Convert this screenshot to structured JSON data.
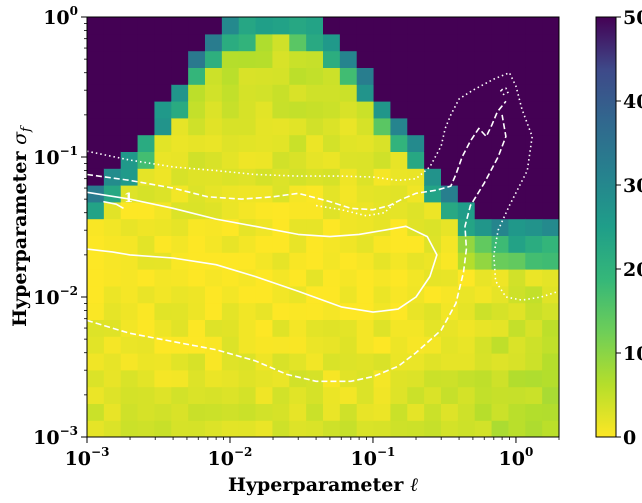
{
  "chart_data": {
    "type": "heatmap",
    "title": "",
    "xlabel": "Hyperparameter",
    "xlabel_symbol": "ℓ",
    "ylabel": "Hyperparameter",
    "ylabel_symbol": "σ",
    "ylabel_subscript": "f",
    "x_scale": "log",
    "y_scale": "log",
    "xlim": [
      0.001,
      2.0
    ],
    "ylim": [
      0.001,
      1.0
    ],
    "colorbar_range": [
      0,
      50
    ],
    "colormap": "viridis_r",
    "grid": false,
    "x_ticks": [
      {
        "value": 0.001,
        "base": "10",
        "exp": "−3"
      },
      {
        "value": 0.01,
        "base": "10",
        "exp": "−2"
      },
      {
        "value": 0.1,
        "base": "10",
        "exp": "−1"
      },
      {
        "value": 1,
        "base": "10",
        "exp": "0"
      }
    ],
    "y_ticks": [
      {
        "value": 0.001,
        "base": "10",
        "exp": "−3"
      },
      {
        "value": 0.01,
        "base": "10",
        "exp": "−2"
      },
      {
        "value": 0.1,
        "base": "10",
        "exp": "−1"
      },
      {
        "value": 1,
        "base": "10",
        "exp": "0"
      }
    ],
    "colorbar_ticks": [
      "0",
      "10",
      "20",
      "30",
      "40",
      "50"
    ],
    "contour_label": "1",
    "contours": [
      {
        "style": "solid",
        "points": [
          [
            0.001,
            0.022
          ],
          [
            0.0015,
            0.021
          ],
          [
            0.002,
            0.02
          ],
          [
            0.004,
            0.019
          ],
          [
            0.008,
            0.017
          ],
          [
            0.015,
            0.014
          ],
          [
            0.03,
            0.011
          ],
          [
            0.06,
            0.0085
          ],
          [
            0.1,
            0.0078
          ],
          [
            0.15,
            0.0082
          ],
          [
            0.2,
            0.01
          ],
          [
            0.25,
            0.014
          ],
          [
            0.28,
            0.02
          ],
          [
            0.24,
            0.027
          ],
          [
            0.17,
            0.032
          ],
          [
            0.12,
            0.03
          ],
          [
            0.08,
            0.028
          ],
          [
            0.05,
            0.027
          ],
          [
            0.03,
            0.028
          ],
          [
            0.015,
            0.032
          ],
          [
            0.008,
            0.036
          ],
          [
            0.004,
            0.043
          ],
          [
            0.002,
            0.05
          ],
          [
            0.001,
            0.056
          ]
        ]
      },
      {
        "style": "solid",
        "points": [
          [
            0.0013,
            0.048
          ],
          [
            0.0016,
            0.046
          ],
          [
            0.0018,
            0.043
          ]
        ]
      },
      {
        "style": "dashed",
        "points": [
          [
            0.001,
            0.0068
          ],
          [
            0.0015,
            0.006
          ],
          [
            0.002,
            0.0055
          ],
          [
            0.004,
            0.0048
          ],
          [
            0.008,
            0.0042
          ],
          [
            0.015,
            0.0035
          ],
          [
            0.025,
            0.0028
          ],
          [
            0.04,
            0.0025
          ],
          [
            0.07,
            0.0025
          ],
          [
            0.1,
            0.0027
          ],
          [
            0.15,
            0.0032
          ],
          [
            0.2,
            0.004
          ],
          [
            0.3,
            0.0058
          ],
          [
            0.38,
            0.009
          ],
          [
            0.43,
            0.015
          ],
          [
            0.45,
            0.022
          ],
          [
            0.44,
            0.032
          ],
          [
            0.48,
            0.045
          ],
          [
            0.6,
            0.065
          ],
          [
            0.75,
            0.1
          ],
          [
            0.85,
            0.14
          ],
          [
            0.8,
            0.2
          ]
        ]
      },
      {
        "style": "dashed",
        "points": [
          [
            0.001,
            0.075
          ],
          [
            0.002,
            0.068
          ],
          [
            0.004,
            0.06
          ],
          [
            0.007,
            0.052
          ],
          [
            0.012,
            0.05
          ],
          [
            0.02,
            0.052
          ],
          [
            0.03,
            0.055
          ],
          [
            0.05,
            0.048
          ],
          [
            0.07,
            0.043
          ],
          [
            0.1,
            0.042
          ],
          [
            0.13,
            0.045
          ],
          [
            0.16,
            0.05
          ],
          [
            0.2,
            0.055
          ],
          [
            0.28,
            0.058
          ],
          [
            0.35,
            0.062
          ],
          [
            0.38,
            0.075
          ],
          [
            0.42,
            0.1
          ],
          [
            0.48,
            0.13
          ],
          [
            0.55,
            0.16
          ],
          [
            0.62,
            0.14
          ],
          [
            0.68,
            0.17
          ],
          [
            0.74,
            0.21
          ],
          [
            0.85,
            0.25
          ]
        ]
      },
      {
        "style": "dotted",
        "points": [
          [
            0.001,
            0.11
          ],
          [
            0.002,
            0.095
          ],
          [
            0.004,
            0.085
          ],
          [
            0.008,
            0.08
          ],
          [
            0.015,
            0.075
          ],
          [
            0.03,
            0.073
          ],
          [
            0.06,
            0.073
          ],
          [
            0.1,
            0.072
          ],
          [
            0.15,
            0.068
          ],
          [
            0.2,
            0.07
          ],
          [
            0.25,
            0.085
          ],
          [
            0.3,
            0.12
          ],
          [
            0.32,
            0.16
          ],
          [
            0.35,
            0.2
          ],
          [
            0.4,
            0.26
          ],
          [
            0.5,
            0.3
          ],
          [
            0.7,
            0.36
          ],
          [
            0.9,
            0.4
          ],
          [
            1.0,
            0.32
          ],
          [
            1.1,
            0.22
          ],
          [
            1.3,
            0.14
          ],
          [
            1.2,
            0.08
          ],
          [
            0.9,
            0.045
          ],
          [
            0.75,
            0.03
          ],
          [
            0.7,
            0.02
          ],
          [
            0.72,
            0.013
          ],
          [
            0.85,
            0.01
          ],
          [
            1.1,
            0.0095
          ],
          [
            1.5,
            0.01
          ],
          [
            2.0,
            0.011
          ]
        ]
      },
      {
        "style": "dotted",
        "points": [
          [
            0.78,
            0.3
          ],
          [
            0.82,
            0.28
          ],
          [
            0.88,
            0.29
          ],
          [
            0.85,
            0.31
          ],
          [
            0.78,
            0.3
          ]
        ]
      },
      {
        "style": "dotted",
        "points": [
          [
            0.04,
            0.045
          ],
          [
            0.06,
            0.042
          ],
          [
            0.09,
            0.038
          ],
          [
            0.12,
            0.04
          ],
          [
            0.14,
            0.046
          ]
        ]
      }
    ]
  }
}
